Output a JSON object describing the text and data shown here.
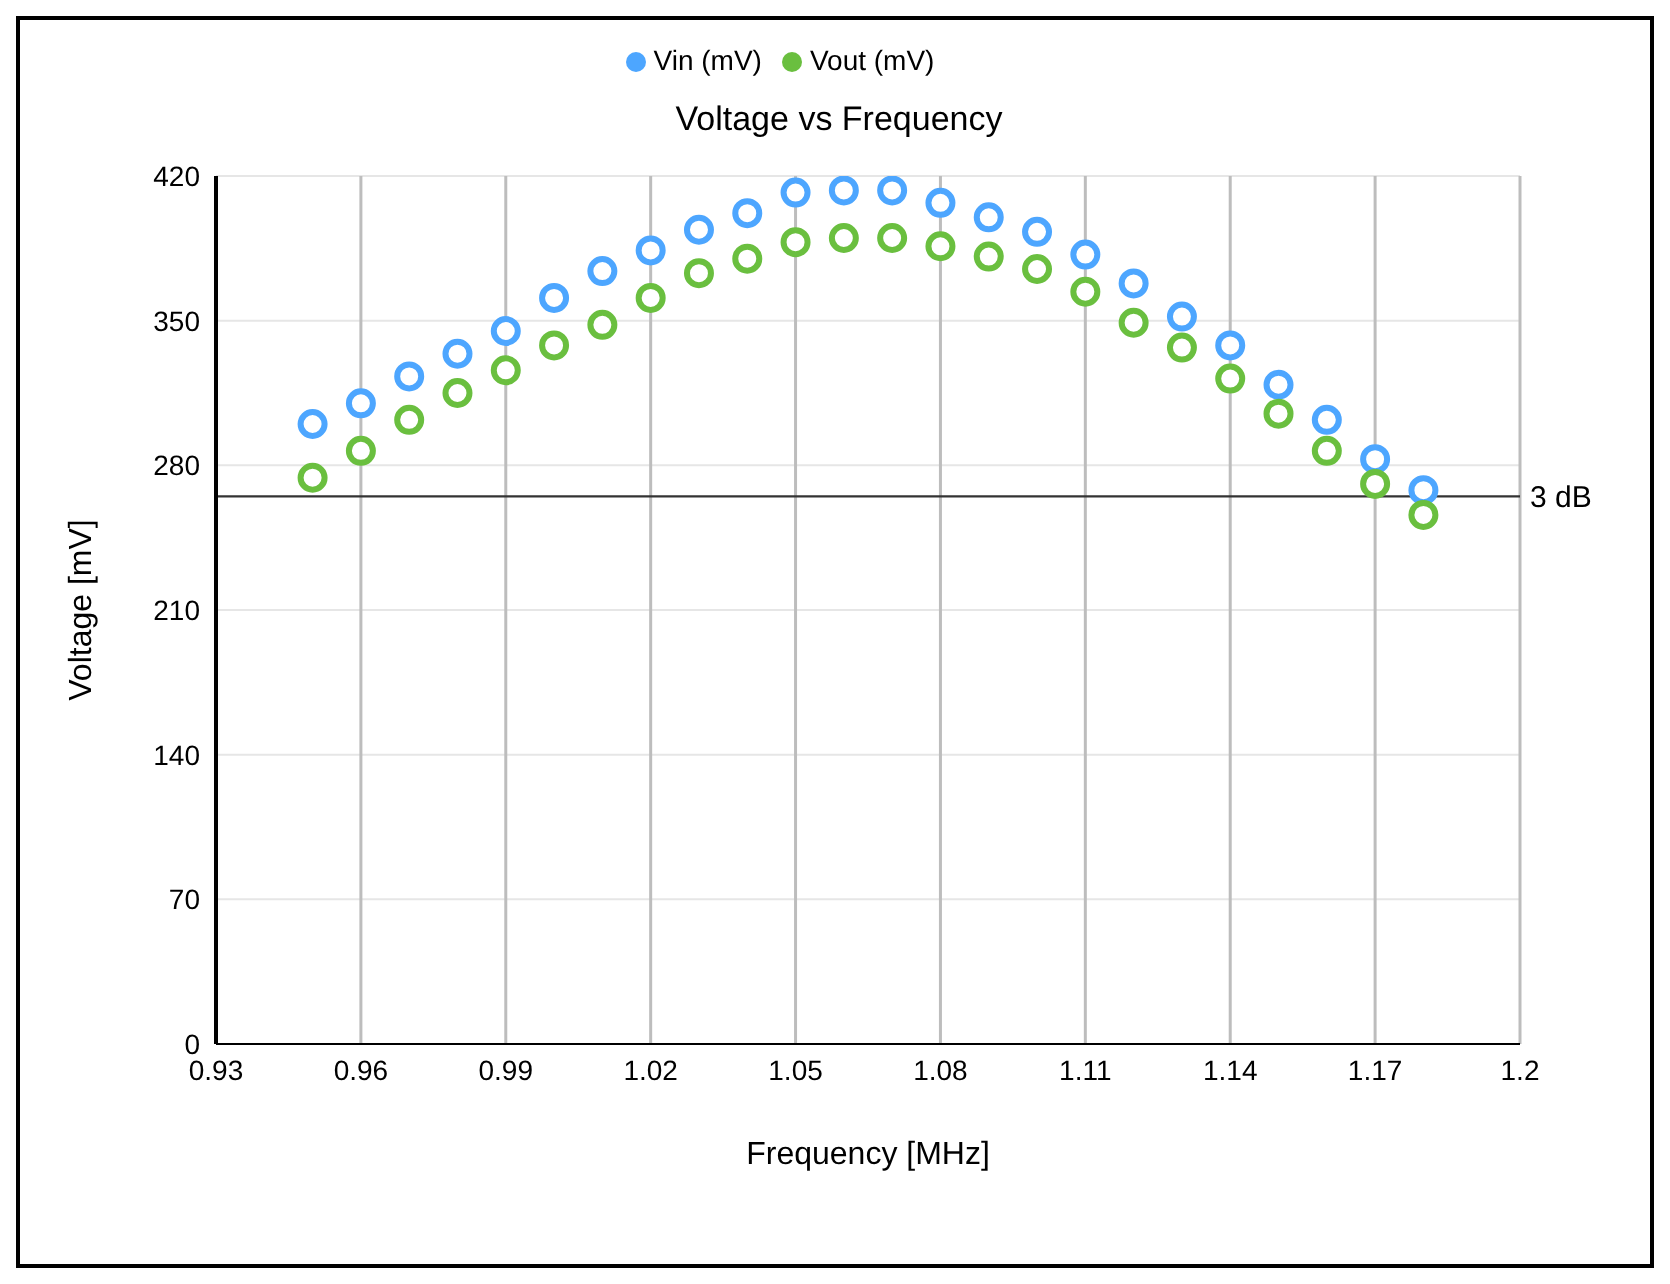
{
  "chart_data": {
    "type": "scatter",
    "title": "Voltage vs Frequency",
    "xlabel": "Frequency [MHz]",
    "ylabel": "Voltage [mV]",
    "x": [
      0.95,
      0.96,
      0.97,
      0.98,
      0.99,
      1.0,
      1.01,
      1.02,
      1.03,
      1.04,
      1.05,
      1.06,
      1.07,
      1.08,
      1.09,
      1.1,
      1.11,
      1.12,
      1.13,
      1.14,
      1.15,
      1.16,
      1.17,
      1.18
    ],
    "series": [
      {
        "name": "Vin (mV)",
        "color": "#4da6ff",
        "values": [
          300,
          310,
          323,
          334,
          345,
          361,
          374,
          384,
          394,
          402,
          412,
          413,
          413,
          407,
          400,
          393,
          382,
          368,
          352,
          338,
          319,
          302,
          283,
          268
        ]
      },
      {
        "name": "Vout (mV)",
        "color": "#6abf3f",
        "values": [
          274,
          287,
          302,
          315,
          326,
          338,
          348,
          361,
          373,
          380,
          388,
          390,
          390,
          386,
          381,
          375,
          364,
          349,
          337,
          322,
          305,
          287,
          271,
          256
        ]
      }
    ],
    "xlim": [
      0.93,
      1.2
    ],
    "xticks": [
      0.93,
      0.96,
      0.99,
      1.02,
      1.05,
      1.08,
      1.11,
      1.14,
      1.17,
      1.2
    ],
    "ylim": [
      0,
      420
    ],
    "yticks": [
      0,
      70,
      140,
      210,
      280,
      350,
      420
    ],
    "ref_lines": [
      {
        "axis": "y",
        "value": 265,
        "label": "3 dB",
        "color": "#333333"
      }
    ],
    "grid": true,
    "legend": "top",
    "marker": "circle"
  }
}
